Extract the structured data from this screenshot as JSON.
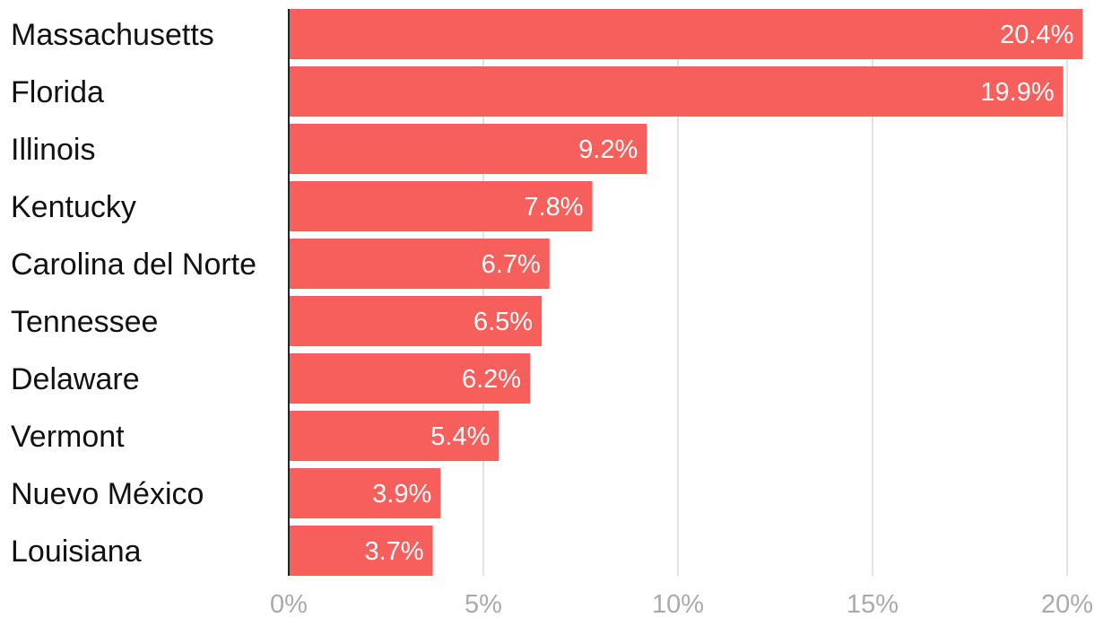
{
  "chart_data": {
    "type": "bar",
    "orientation": "horizontal",
    "categories": [
      "Massachusetts",
      "Florida",
      "Illinois",
      "Kentucky",
      "Carolina del Norte",
      "Tennessee",
      "Delaware",
      "Vermont",
      "Nuevo México",
      "Louisiana"
    ],
    "values": [
      20.4,
      19.9,
      9.2,
      7.8,
      6.7,
      6.5,
      6.2,
      5.4,
      3.9,
      3.7
    ],
    "value_labels": [
      "20.4%",
      "19.9%",
      "9.2%",
      "7.8%",
      "6.7%",
      "6.5%",
      "6.2%",
      "5.4%",
      "3.9%",
      "3.7%"
    ],
    "xlim": [
      0,
      20
    ],
    "xticks": [
      0,
      5,
      10,
      15,
      20
    ],
    "xtick_labels": [
      "0%",
      "5%",
      "10%",
      "15%",
      "20%"
    ],
    "grid": "vertical",
    "legend": "none",
    "colors": {
      "bar": "#f75f5c",
      "grid": "#e3e3e3",
      "axis": "#222222",
      "category_text": "#111111",
      "tick_text": "#aaaaaa",
      "value_text": "#ffffff"
    }
  }
}
